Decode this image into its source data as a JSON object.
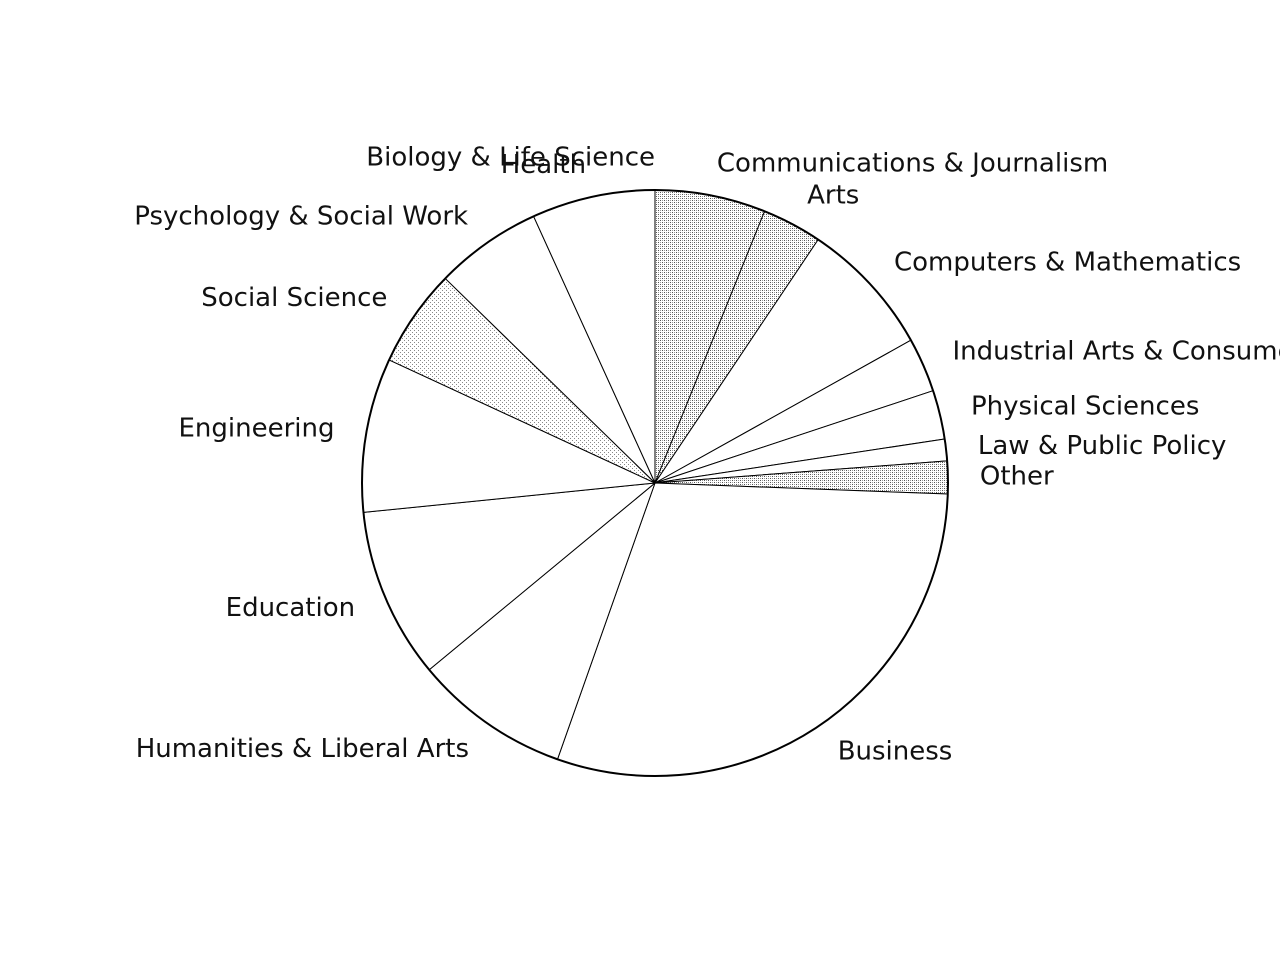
{
  "chart_data": {
    "type": "pie",
    "start_angle_deg": 90,
    "direction": "clockwise",
    "slices": [
      {
        "label": "Communications & Journalism",
        "value": 6.1,
        "pattern": "dense-dots"
      },
      {
        "label": "Arts",
        "value": 3.3,
        "pattern": "dense-dots"
      },
      {
        "label": "Computers & Mathematics",
        "value": 7.5,
        "pattern": "none"
      },
      {
        "label": "Industrial Arts & Consumer Services",
        "value": 3.0,
        "pattern": "none"
      },
      {
        "label": "Physical Sciences",
        "value": 2.7,
        "pattern": "none"
      },
      {
        "label": "Law & Public Policy",
        "value": 1.2,
        "pattern": "none"
      },
      {
        "label": "Other",
        "value": 1.8,
        "pattern": "dense-dots"
      },
      {
        "label": "Business",
        "value": 29.8,
        "pattern": "none"
      },
      {
        "label": "Humanities & Liberal Arts",
        "value": 8.6,
        "pattern": "none"
      },
      {
        "label": "Education",
        "value": 9.4,
        "pattern": "none"
      },
      {
        "label": "Engineering",
        "value": 8.5,
        "pattern": "none"
      },
      {
        "label": "Social Science",
        "value": 5.4,
        "pattern": "light-dots"
      },
      {
        "label": "Psychology & Social Work",
        "value": 5.9,
        "pattern": "none"
      },
      {
        "label": "Health",
        "value": 6.8,
        "pattern": "none"
      },
      {
        "label": "Biology & Life Science",
        "value": 0,
        "pattern": "none"
      }
    ],
    "legend": "none"
  }
}
